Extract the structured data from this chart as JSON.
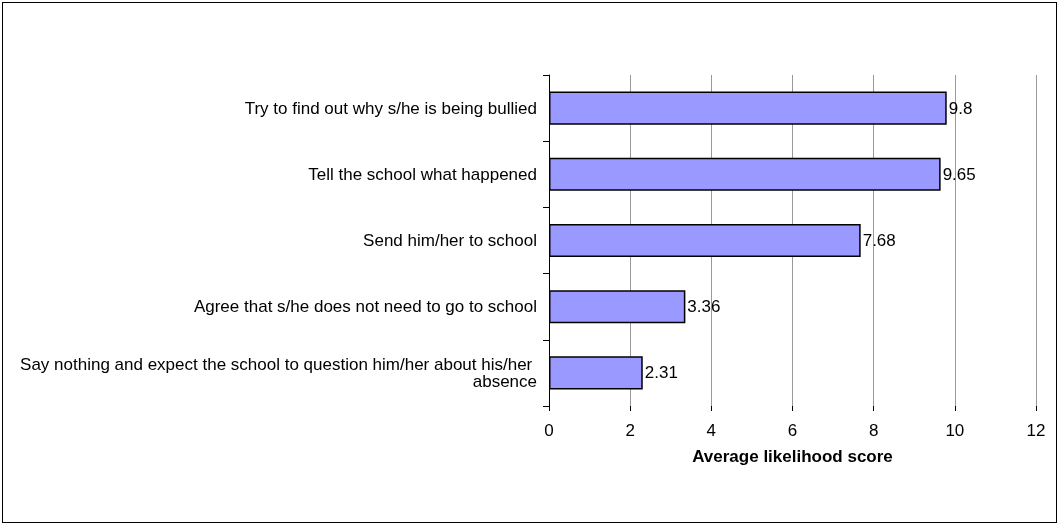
{
  "chart_data": {
    "type": "bar",
    "orientation": "horizontal",
    "xlabel": "Average likelihood score",
    "categories": [
      "Try to find out why s/he is being bullied",
      "Tell the school what happened",
      "Send him/her to school",
      "Agree that s/he does not need to go to school",
      "Say nothing and expect the school to question him/her about his/her absence"
    ],
    "values": [
      9.8,
      9.65,
      7.68,
      3.36,
      2.31
    ],
    "color": "#9999ff",
    "xlim": [
      0,
      12
    ],
    "xticks": [
      0,
      2,
      4,
      6,
      8,
      10,
      12
    ],
    "grid": "x",
    "data_labels": true
  }
}
